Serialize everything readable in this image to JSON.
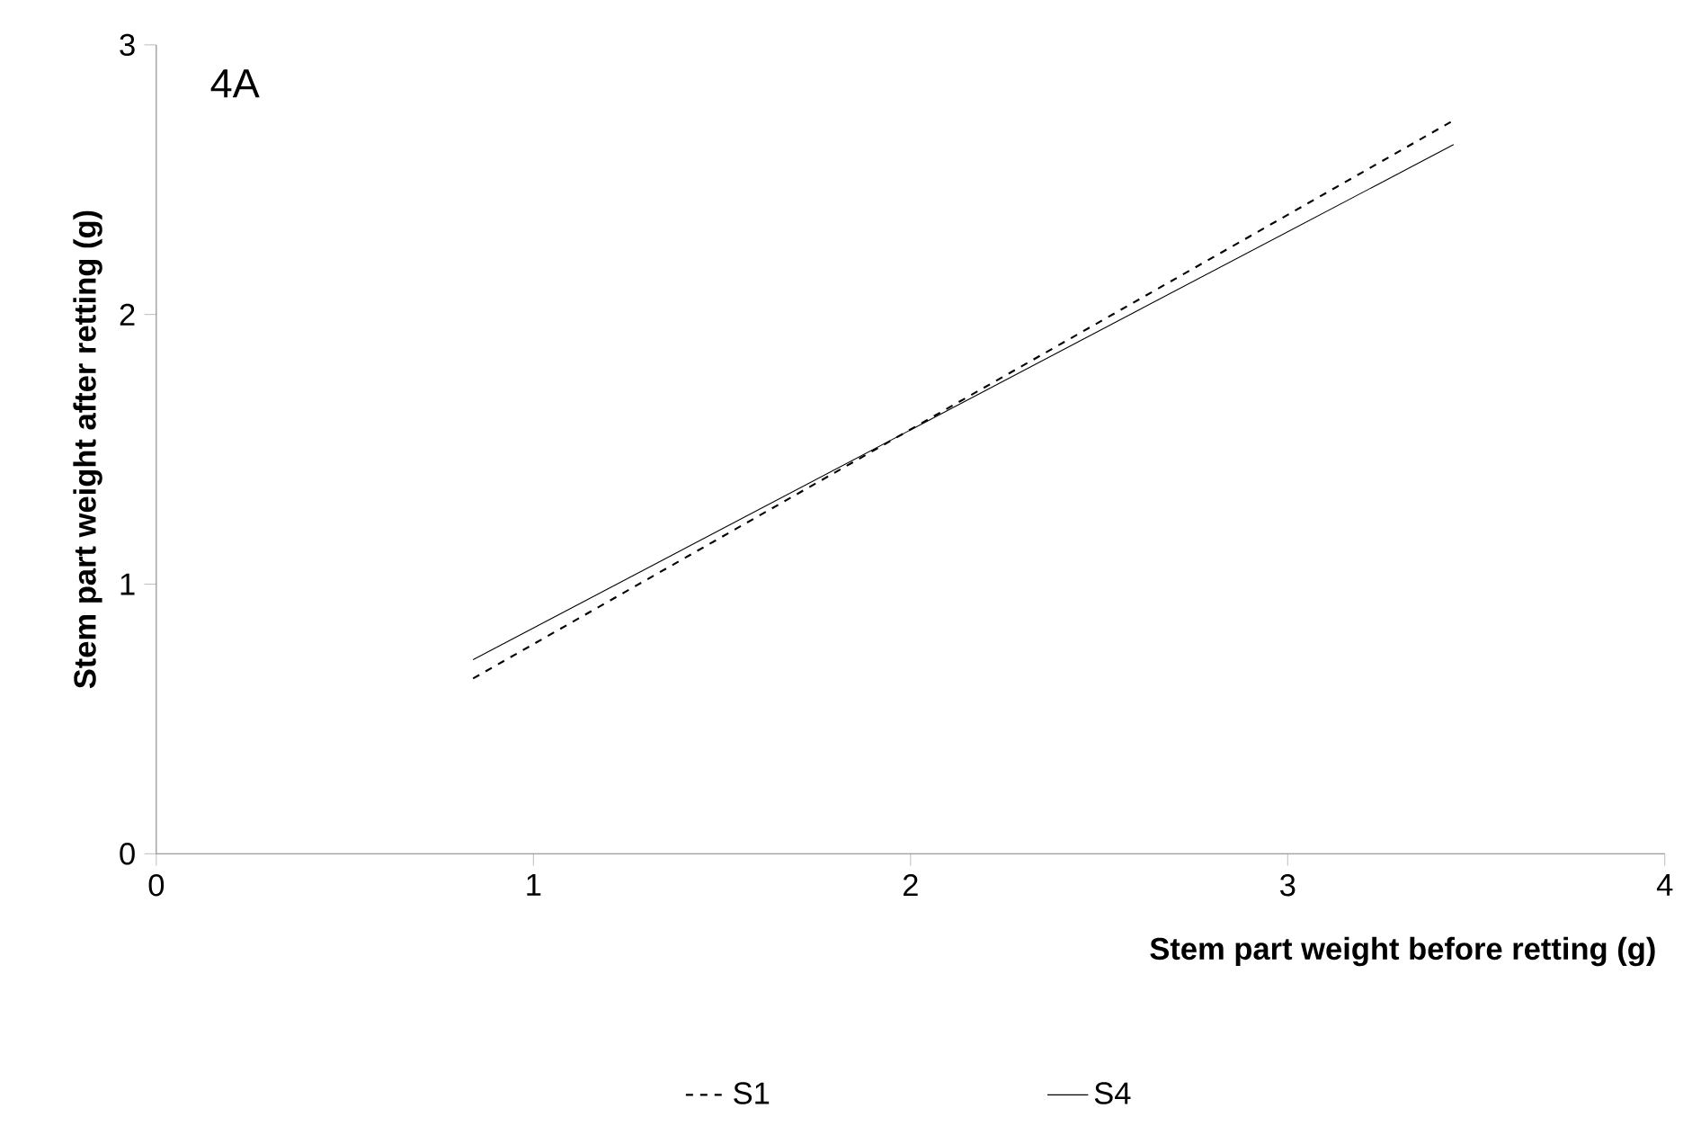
{
  "chart_data": {
    "type": "line",
    "xlabel": "Stem part weight before retting (g)",
    "ylabel": "Stem part  weight after retting (g)",
    "annotations": [
      "4A"
    ],
    "x": [
      0.84,
      3.44
    ],
    "series": [
      {
        "name": "S1",
        "color": "#000000",
        "line_style": "dashed",
        "values": [
          0.65,
          2.72
        ]
      },
      {
        "name": "S4",
        "color": "#000000",
        "line_style": "solid",
        "values": [
          0.72,
          2.63
        ]
      }
    ],
    "xlim": [
      0,
      4
    ],
    "ylim": [
      0,
      3
    ],
    "xticks": [
      0,
      1,
      2,
      3,
      4
    ],
    "yticks": [
      0,
      1,
      2,
      3
    ],
    "grid": false,
    "legend": "bottom",
    "marker": "none"
  }
}
